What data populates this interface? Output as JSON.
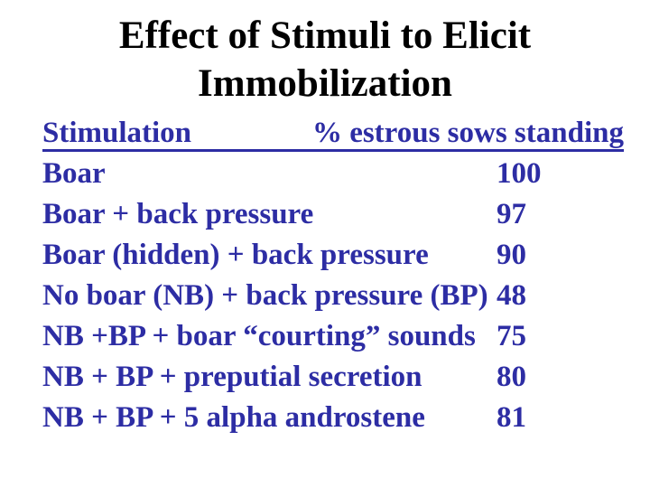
{
  "slide": {
    "title_lines": [
      "Effect of Stimuli to Elicit",
      "Immobilization"
    ],
    "table": {
      "col1_header": "Stimulation",
      "col2_header": "% estrous sows standing",
      "rows": [
        {
          "stimulus": "Boar",
          "value": "100"
        },
        {
          "stimulus": "Boar + back pressure",
          "value": "97"
        },
        {
          "stimulus": "Boar (hidden) + back pressure",
          "value": "90"
        },
        {
          "stimulus": "No boar (NB) + back pressure (BP)",
          "value": "48"
        },
        {
          "stimulus": "NB +BP + boar “courting” sounds",
          "value": "75"
        },
        {
          "stimulus": "NB + BP + preputial secretion",
          "value": "80"
        },
        {
          "stimulus": "NB + BP + 5 alpha androstene",
          "value": "81"
        }
      ]
    },
    "colors": {
      "background": "#ffffff",
      "title_text": "#000000",
      "table_text": "#2d2da4",
      "header_underline": "#2d2da4"
    }
  }
}
